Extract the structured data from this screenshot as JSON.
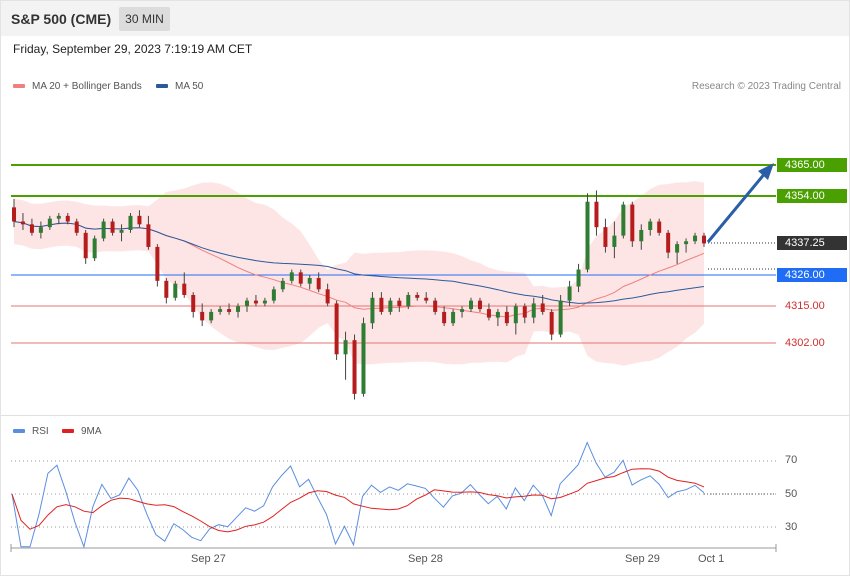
{
  "header": {
    "instrument": "S&P 500 (CME)",
    "timeframe": "30 MIN"
  },
  "datetime": "Friday, September 29, 2023 7:19:19 AM CET",
  "credit": "Research © 2023 Trading Central",
  "legend": [
    {
      "label": "MA 20 + Bollinger Bands",
      "color": "#f08080"
    },
    {
      "label": "MA 50",
      "color": "#2b5a9c"
    }
  ],
  "rsi_legend": [
    {
      "label": "RSI",
      "color": "#5b8ee0"
    },
    {
      "label": "9MA",
      "color": "#e02020"
    }
  ],
  "levels": [
    {
      "value": "4365.00",
      "kind": "resistance",
      "color": "#4aa000"
    },
    {
      "value": "4354.00",
      "kind": "resistance",
      "color": "#4aa000"
    },
    {
      "value": "4337.25",
      "kind": "last",
      "color": "#333333"
    },
    {
      "value": "4326.00",
      "kind": "pivot",
      "color": "#1f6df5"
    },
    {
      "value": "4315.00",
      "kind": "support",
      "color": "#d03030"
    },
    {
      "value": "4302.00",
      "kind": "support",
      "color": "#d03030"
    }
  ],
  "x_labels": [
    "Sep 27",
    "Sep 28",
    "Sep 29",
    "Oct 1"
  ],
  "rsi_ticks": [
    "70",
    "50",
    "30"
  ],
  "chart_data": {
    "type": "candlestick",
    "timeframe": "30 MIN",
    "last_price": 4337.25,
    "price_range": [
      4278,
      4375
    ],
    "rsi_range": [
      20,
      80
    ],
    "forecast_target": 4365.0,
    "candles": [
      [
        4350,
        4353,
        4343,
        4345
      ],
      [
        4345,
        4348,
        4342,
        4344
      ],
      [
        4344,
        4346,
        4340,
        4341
      ],
      [
        4341,
        4345,
        4339,
        4343
      ],
      [
        4343,
        4347,
        4342,
        4346
      ],
      [
        4346,
        4348,
        4344,
        4347
      ],
      [
        4347,
        4348,
        4344,
        4345
      ],
      [
        4345,
        4346,
        4340,
        4341
      ],
      [
        4341,
        4342,
        4330,
        4332
      ],
      [
        4332,
        4340,
        4331,
        4339
      ],
      [
        4339,
        4346,
        4338,
        4345
      ],
      [
        4345,
        4346,
        4340,
        4341
      ],
      [
        4341,
        4344,
        4338,
        4342
      ],
      [
        4342,
        4348,
        4341,
        4347
      ],
      [
        4347,
        4349,
        4343,
        4344
      ],
      [
        4344,
        4347,
        4335,
        4336
      ],
      [
        4336,
        4337,
        4322,
        4324
      ],
      [
        4324,
        4325,
        4316,
        4318
      ],
      [
        4318,
        4324,
        4317,
        4323
      ],
      [
        4323,
        4327,
        4318,
        4319
      ],
      [
        4319,
        4320,
        4311,
        4313
      ],
      [
        4313,
        4316,
        4308,
        4310
      ],
      [
        4310,
        4314,
        4309,
        4313
      ],
      [
        4313,
        4315,
        4312,
        4314
      ],
      [
        4314,
        4316,
        4312,
        4313
      ],
      [
        4313,
        4316,
        4311,
        4315
      ],
      [
        4315,
        4318,
        4313,
        4317
      ],
      [
        4317,
        4319,
        4315,
        4316
      ],
      [
        4316,
        4318,
        4315,
        4317
      ],
      [
        4317,
        4322,
        4316,
        4321
      ],
      [
        4321,
        4325,
        4320,
        4324
      ],
      [
        4324,
        4328,
        4323,
        4327
      ],
      [
        4327,
        4328,
        4322,
        4323
      ],
      [
        4323,
        4326,
        4321,
        4325
      ],
      [
        4325,
        4327,
        4320,
        4321
      ],
      [
        4321,
        4323,
        4315,
        4316
      ],
      [
        4316,
        4317,
        4296,
        4298
      ],
      [
        4298,
        4306,
        4289,
        4303
      ],
      [
        4303,
        4305,
        4282,
        4284
      ],
      [
        4284,
        4311,
        4283,
        4309
      ],
      [
        4309,
        4320,
        4307,
        4318
      ],
      [
        4318,
        4320,
        4312,
        4313
      ],
      [
        4313,
        4318,
        4312,
        4317
      ],
      [
        4317,
        4318,
        4313,
        4315
      ],
      [
        4315,
        4320,
        4314,
        4319
      ],
      [
        4319,
        4320,
        4317,
        4318
      ],
      [
        4318,
        4320,
        4316,
        4317
      ],
      [
        4317,
        4318,
        4312,
        4313
      ],
      [
        4313,
        4315,
        4308,
        4309
      ],
      [
        4309,
        4314,
        4308,
        4313
      ],
      [
        4313,
        4315,
        4311,
        4314
      ],
      [
        4314,
        4318,
        4313,
        4317
      ],
      [
        4317,
        4318,
        4313,
        4314
      ],
      [
        4314,
        4316,
        4310,
        4311
      ],
      [
        4311,
        4314,
        4308,
        4313
      ],
      [
        4313,
        4315,
        4308,
        4309
      ],
      [
        4309,
        4316,
        4305,
        4315
      ],
      [
        4315,
        4316,
        4309,
        4311
      ],
      [
        4311,
        4318,
        4309,
        4316
      ],
      [
        4316,
        4319,
        4312,
        4313
      ],
      [
        4313,
        4314,
        4303,
        4305
      ],
      [
        4305,
        4319,
        4304,
        4317
      ],
      [
        4317,
        4324,
        4315,
        4322
      ],
      [
        4322,
        4330,
        4320,
        4328
      ],
      [
        4328,
        4355,
        4327,
        4352
      ],
      [
        4352,
        4356,
        4340,
        4343
      ],
      [
        4343,
        4346,
        4334,
        4336
      ],
      [
        4336,
        4345,
        4332,
        4340
      ],
      [
        4340,
        4352,
        4339,
        4351
      ],
      [
        4351,
        4352,
        4336,
        4338
      ],
      [
        4338,
        4344,
        4335,
        4342
      ],
      [
        4342,
        4346,
        4340,
        4345
      ],
      [
        4345,
        4346,
        4340,
        4341
      ],
      [
        4341,
        4342,
        4332,
        4334
      ],
      [
        4334,
        4338,
        4330,
        4337
      ],
      [
        4337,
        4339,
        4334,
        4338
      ],
      [
        4338,
        4341,
        4337,
        4340
      ],
      [
        4340,
        4341,
        4336,
        4337.25
      ]
    ]
  }
}
